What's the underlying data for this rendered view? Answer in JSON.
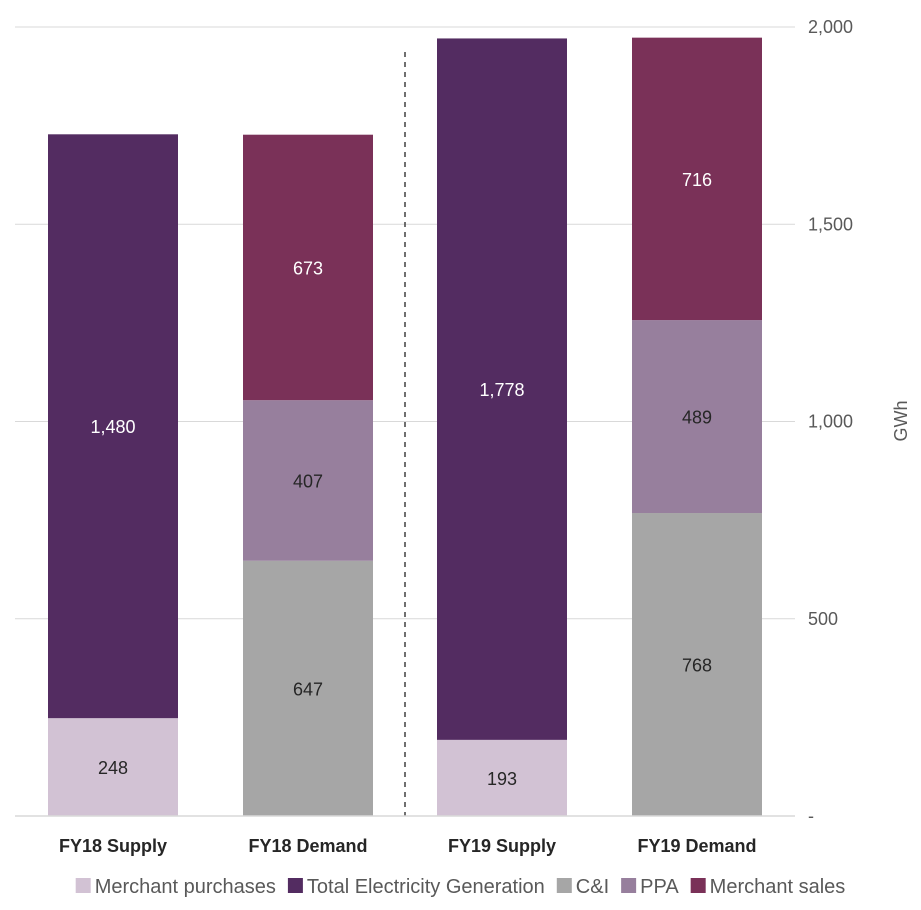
{
  "chart_data": {
    "type": "bar",
    "stacked": true,
    "categories": [
      "FY18 Supply",
      "FY18 Demand",
      "FY19 Supply",
      "FY19 Demand"
    ],
    "series": [
      {
        "name": "Merchant purchases",
        "color": "#d2c2d4",
        "label_color": "#262626",
        "values": [
          248,
          null,
          193,
          null
        ]
      },
      {
        "name": "Total Electricity Generation",
        "color": "#532c61",
        "label_color": "#ffffff",
        "values": [
          1480,
          null,
          1778,
          null
        ]
      },
      {
        "name": "C&I",
        "color": "#a6a6a6",
        "label_color": "#262626",
        "values": [
          null,
          647,
          null,
          768
        ]
      },
      {
        "name": "PPA",
        "color": "#977f9d",
        "label_color": "#262626",
        "values": [
          null,
          407,
          null,
          489
        ]
      },
      {
        "name": "Merchant sales",
        "color": "#7a3158",
        "label_color": "#ffffff",
        "values": [
          null,
          673,
          null,
          716
        ]
      }
    ],
    "data_labels": [
      [
        "248",
        null,
        "193",
        null
      ],
      [
        "1,480",
        null,
        "1,778",
        null
      ],
      [
        null,
        "647",
        null,
        "768"
      ],
      [
        null,
        "407",
        null,
        "489"
      ],
      [
        null,
        "673",
        null,
        "716"
      ]
    ],
    "ylabel": "GWh",
    "ylim": [
      0,
      2000
    ],
    "yticks": [
      0,
      500,
      1000,
      1500,
      2000
    ],
    "ytick_labels": [
      "-",
      "500",
      "1,000",
      "1,500",
      "2,000"
    ],
    "y_axis_side": "right",
    "grid": true,
    "divider_after_category": 1,
    "legend_position": "bottom"
  }
}
